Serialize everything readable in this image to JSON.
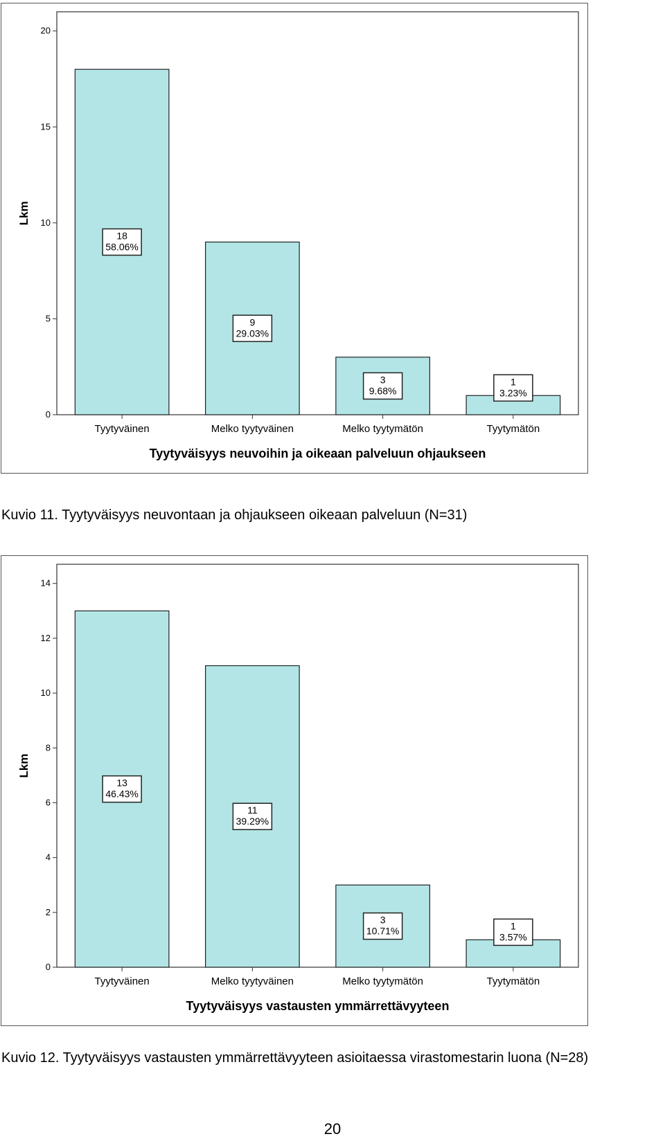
{
  "chart_data": [
    {
      "type": "bar",
      "categories": [
        "Tyytyväinen",
        "Melko tyytyväinen",
        "Melko tyytymätön",
        "Tyytymätön"
      ],
      "values": [
        18,
        9,
        3,
        1
      ],
      "value_labels": [
        "18",
        "9",
        "3",
        "1"
      ],
      "percent_labels": [
        "58.06%",
        "29.03%",
        "9.68%",
        "3.23%"
      ],
      "xlabel": "Tyytyväisyys neuvoihin ja oikeaan palveluun ohjaukseen",
      "ylabel": "Lkm",
      "ylim": [
        0,
        21
      ],
      "yticks": [
        0,
        5,
        10,
        15,
        20
      ],
      "bar_color": "#b3e5e6",
      "grid": false
    },
    {
      "type": "bar",
      "categories": [
        "Tyytyväinen",
        "Melko tyytyväinen",
        "Melko tyytymätön",
        "Tyytymätön"
      ],
      "values": [
        13,
        11,
        3,
        1
      ],
      "value_labels": [
        "13",
        "11",
        "3",
        "1"
      ],
      "percent_labels": [
        "46.43%",
        "39.29%",
        "10.71%",
        "3.57%"
      ],
      "xlabel": "Tyytyväisyys vastausten ymmärrettävyyteen",
      "ylabel": "Lkm",
      "ylim": [
        0,
        14.7
      ],
      "yticks": [
        0,
        2,
        4,
        6,
        8,
        10,
        12,
        14
      ],
      "bar_color": "#b3e5e6",
      "grid": false
    }
  ],
  "captions": {
    "first": "Kuvio 11. Tyytyväisyys neuvontaan ja ohjaukseen oikeaan palveluun (N=31)",
    "second": "Kuvio 12. Tyytyväisyys vastausten ymmärrettävyyteen asioitaessa virastomestarin luona (N=28)"
  },
  "page_number": "20"
}
